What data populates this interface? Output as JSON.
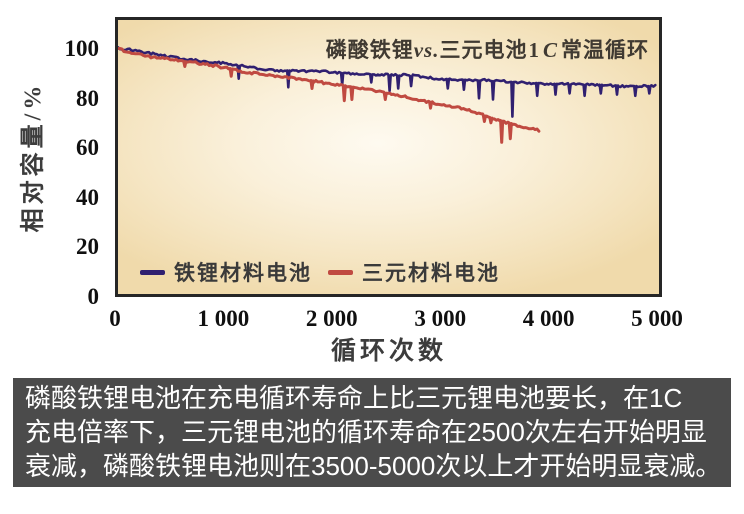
{
  "chart": {
    "title_parts": {
      "pre": "磷酸铁锂",
      "vs": "vs.",
      "mid": "三元电池",
      "rate_num": "1",
      "rate_unit": "C",
      "post": "常温循环"
    },
    "y_tick_labels": [
      "100",
      "80",
      "60",
      "40",
      "20",
      "0"
    ],
    "x_tick_labels": [
      "0",
      "1 000",
      "2 000",
      "3 000",
      "4 000",
      "5 000"
    ]
  },
  "chart_data": {
    "type": "line",
    "title": "磷酸铁锂vs.三元电池1 C常温循环",
    "xlabel": "循环次数",
    "ylabel": "相对容量/%",
    "xlim": [
      0,
      5020
    ],
    "ylim": [
      0,
      112
    ],
    "x_ticks": [
      0,
      1000,
      2000,
      3000,
      4000,
      5000
    ],
    "y_ticks": [
      0,
      20,
      40,
      60,
      80,
      100
    ],
    "grid": false,
    "legend_position": "inside-bottom-left",
    "plot_background": [
      "#fefaf0",
      "#f0daab"
    ],
    "plot_border_color": "#262626",
    "series": [
      {
        "name": "铁锂材料电池",
        "color": "#302070",
        "anchors": [
          [
            0,
            100.5
          ],
          [
            250,
            98.5
          ],
          [
            500,
            97.0
          ],
          [
            750,
            95.5
          ],
          [
            1000,
            94.0
          ],
          [
            1250,
            92.5
          ],
          [
            1500,
            91.5
          ],
          [
            1750,
            91.0
          ],
          [
            2000,
            90.5
          ],
          [
            2250,
            90.0
          ],
          [
            2500,
            89.5
          ],
          [
            2750,
            89.0
          ],
          [
            3000,
            88.0
          ],
          [
            3250,
            87.5
          ],
          [
            3500,
            87.0
          ],
          [
            3750,
            86.5
          ],
          [
            4000,
            86.0
          ],
          [
            4250,
            85.5
          ],
          [
            4500,
            85.5
          ],
          [
            4750,
            85.0
          ],
          [
            5000,
            85.0
          ]
        ],
        "spikes": [
          [
            1120,
            88.0
          ],
          [
            1580,
            84.5
          ],
          [
            2080,
            85.5
          ],
          [
            2350,
            86.5
          ],
          [
            2520,
            83.0
          ],
          [
            2600,
            84.0
          ],
          [
            2720,
            85.0
          ],
          [
            3060,
            84.0
          ],
          [
            3210,
            83.5
          ],
          [
            3350,
            80.0
          ],
          [
            3480,
            79.5
          ],
          [
            3660,
            72.5
          ],
          [
            3890,
            81.0
          ],
          [
            4060,
            81.5
          ],
          [
            4190,
            82.0
          ],
          [
            4330,
            81.0
          ],
          [
            4480,
            82.0
          ],
          [
            4630,
            81.5
          ],
          [
            4800,
            81.0
          ],
          [
            4930,
            82.0
          ]
        ]
      },
      {
        "name": "三元材料电池",
        "color": "#c04a41",
        "anchors": [
          [
            0,
            99.9
          ],
          [
            250,
            97.5
          ],
          [
            500,
            96.0
          ],
          [
            750,
            94.0
          ],
          [
            1000,
            92.5
          ],
          [
            1250,
            90.5
          ],
          [
            1500,
            88.5
          ],
          [
            1750,
            87.5
          ],
          [
            2000,
            86.0
          ],
          [
            2250,
            84.0
          ],
          [
            2500,
            82.0
          ],
          [
            2750,
            80.0
          ],
          [
            3000,
            77.5
          ],
          [
            3250,
            75.0
          ],
          [
            3500,
            71.5
          ],
          [
            3750,
            68.5
          ],
          [
            3920,
            66.5
          ]
        ],
        "spikes": [
          [
            620,
            93.0
          ],
          [
            1050,
            89.0
          ],
          [
            1800,
            84.0
          ],
          [
            2100,
            79.0
          ],
          [
            2170,
            79.5
          ],
          [
            2480,
            79.5
          ],
          [
            2900,
            76.0
          ],
          [
            3400,
            70.5
          ],
          [
            3460,
            70.0
          ],
          [
            3560,
            62.0
          ],
          [
            3640,
            63.5
          ]
        ]
      }
    ]
  },
  "caption": {
    "background": "#4b4b4b",
    "text_color": "#ffffff",
    "lines": [
      "磷酸铁锂电池在充电循环寿命上比三元锂电池要长，在1C",
      "充电倍率下，三元锂电池的循环寿命在2500次左右开始明显",
      "衰减，磷酸铁锂电池则在3500-5000次以上才开始明显衰减。"
    ]
  }
}
